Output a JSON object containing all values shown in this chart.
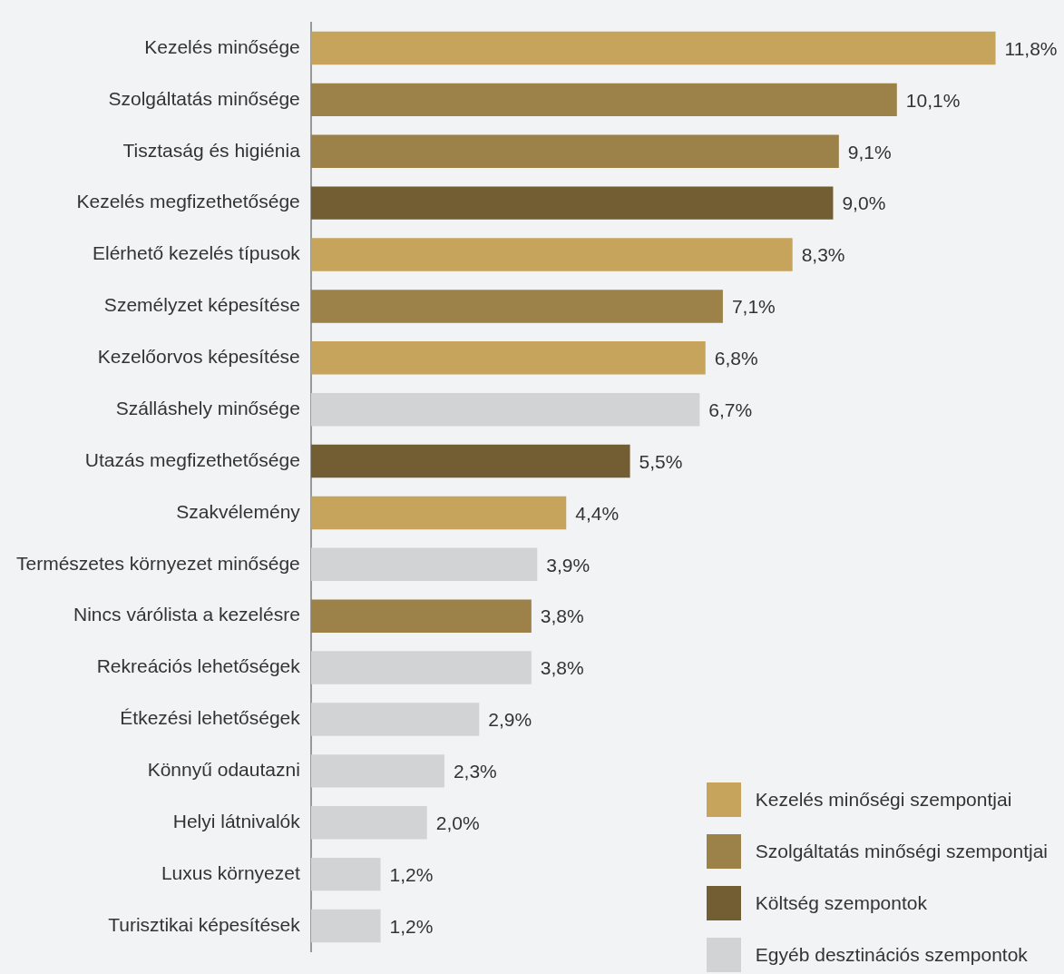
{
  "chart_data": {
    "type": "bar",
    "orientation": "horizontal",
    "stacked": true,
    "legend": "bottom right",
    "categories": [
      "Kezelés minősége",
      "Szolgáltatás minősége",
      "Tisztaság és higiénia",
      "Kezelés megfizethetősége",
      "Elérhető kezelés típusok",
      "Személyzet képesítése",
      "Kezelőorvos képesítése",
      "Szálláshely minősége",
      "Utazás megfizethetősége",
      "Szakvélemény",
      "Természetes környezet minősége",
      "Nincs várólista a kezelésre",
      "Rekreációs lehetőségek",
      "Étkezési lehetőségek",
      "Könnyű odautazni",
      "Helyi látnivalók",
      "Luxus környezet",
      "Turisztikai képesítések"
    ],
    "series": [
      {
        "name": "Kezelés minőségi szempontjai",
        "color": "#c6a45c",
        "values": [
          11.8,
          null,
          null,
          null,
          8.3,
          null,
          6.8,
          null,
          null,
          4.4,
          null,
          null,
          null,
          null,
          null,
          null,
          null,
          null
        ],
        "value_labels": [
          "11,8%",
          null,
          null,
          null,
          "8,3%",
          null,
          "6,8%",
          null,
          null,
          "4,4%",
          null,
          null,
          null,
          null,
          null,
          null,
          null,
          null
        ]
      },
      {
        "name": "Szolgáltatás minőségi szempontjai",
        "color": "#9c8248",
        "values": [
          null,
          10.1,
          9.1,
          null,
          null,
          7.1,
          null,
          null,
          null,
          null,
          null,
          3.8,
          null,
          null,
          null,
          null,
          null,
          null
        ],
        "value_labels": [
          null,
          "10,1%",
          "9,1%",
          null,
          null,
          "7,1%",
          null,
          null,
          null,
          null,
          null,
          "3,8%",
          null,
          null,
          null,
          null,
          null,
          null
        ]
      },
      {
        "name": "Költség szempontok",
        "color": "#735e33",
        "values": [
          null,
          null,
          null,
          9.0,
          null,
          null,
          null,
          null,
          5.5,
          null,
          null,
          null,
          null,
          null,
          null,
          null,
          null,
          null
        ],
        "value_labels": [
          null,
          null,
          null,
          "9,0%",
          null,
          null,
          null,
          null,
          "5,5%",
          null,
          null,
          null,
          null,
          null,
          null,
          null,
          null,
          null
        ]
      },
      {
        "name": "Egyéb desztinációs szempontok",
        "color": "#d2d3d5",
        "values": [
          null,
          null,
          null,
          null,
          null,
          null,
          null,
          6.7,
          null,
          null,
          3.9,
          null,
          3.8,
          2.9,
          2.3,
          2.0,
          1.2,
          1.2
        ],
        "value_labels": [
          null,
          null,
          null,
          null,
          null,
          null,
          null,
          "6,7%",
          null,
          null,
          "3,9%",
          null,
          "3,8%",
          "2,9%",
          "2,3%",
          "2,0%",
          "1,2%",
          "1,2%"
        ]
      }
    ]
  }
}
